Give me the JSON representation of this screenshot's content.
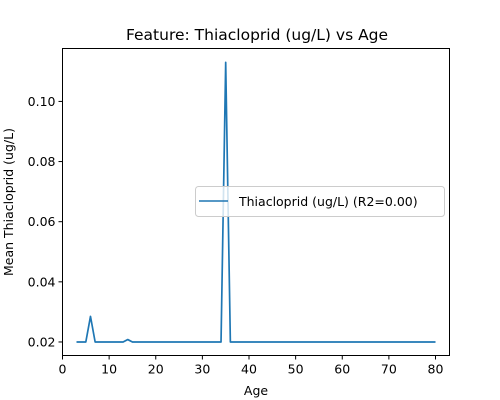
{
  "chart_data": {
    "type": "line",
    "title": "Feature: Thiacloprid (ug/L) vs Age",
    "xlabel": "Age",
    "ylabel": "Mean Thiacloprid (ug/L)",
    "xlim": [
      0,
      83
    ],
    "ylim": [
      0.0155,
      0.1176
    ],
    "xticks": [
      0,
      10,
      20,
      30,
      40,
      50,
      60,
      70,
      80
    ],
    "yticks": [
      0.02,
      0.04,
      0.06,
      0.08,
      0.1
    ],
    "ytick_labels": [
      "0.02",
      "0.04",
      "0.06",
      "0.08",
      "0.10"
    ],
    "grid": false,
    "legend_position": "center-right",
    "series": [
      {
        "name": "Thiacloprid (ug/L) (R2=0.00)",
        "color": "#1f77b4",
        "x": [
          3,
          5,
          6,
          7,
          8,
          9,
          10,
          11,
          12,
          13,
          14,
          15,
          16,
          17,
          18,
          19,
          20,
          21,
          22,
          23,
          24,
          25,
          26,
          27,
          28,
          29,
          30,
          31,
          32,
          33,
          34,
          35,
          36,
          37,
          38,
          39,
          40,
          41,
          42,
          43,
          44,
          45,
          46,
          47,
          48,
          49,
          50,
          51,
          52,
          53,
          54,
          55,
          56,
          57,
          58,
          59,
          60,
          61,
          62,
          63,
          64,
          65,
          66,
          67,
          68,
          69,
          70,
          71,
          72,
          73,
          74,
          75,
          76,
          77,
          78,
          79,
          80
        ],
        "y": [
          0.02,
          0.02,
          0.0285,
          0.02,
          0.02,
          0.02,
          0.02,
          0.02,
          0.02,
          0.02,
          0.0208,
          0.02,
          0.02,
          0.02,
          0.02,
          0.02,
          0.02,
          0.02,
          0.02,
          0.02,
          0.02,
          0.02,
          0.02,
          0.02,
          0.02,
          0.02,
          0.02,
          0.02,
          0.02,
          0.02,
          0.02,
          0.113,
          0.02,
          0.02,
          0.02,
          0.02,
          0.02,
          0.02,
          0.02,
          0.02,
          0.02,
          0.02,
          0.02,
          0.02,
          0.02,
          0.02,
          0.02,
          0.02,
          0.02,
          0.02,
          0.02,
          0.02,
          0.02,
          0.02,
          0.02,
          0.02,
          0.02,
          0.02,
          0.02,
          0.02,
          0.02,
          0.02,
          0.02,
          0.02,
          0.02,
          0.02,
          0.02,
          0.02,
          0.02,
          0.02,
          0.02,
          0.02,
          0.02,
          0.02,
          0.02,
          0.02,
          0.02
        ]
      }
    ]
  }
}
